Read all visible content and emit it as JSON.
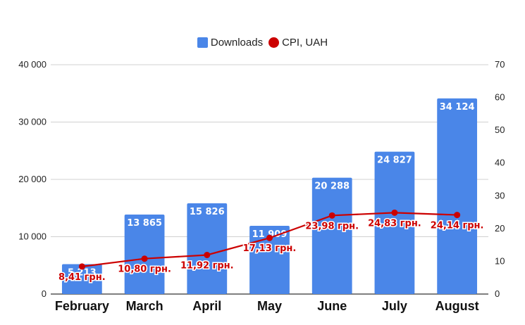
{
  "chart_data": {
    "type": "bar",
    "categories": [
      "February",
      "March",
      "April",
      "May",
      "June",
      "July",
      "August"
    ],
    "series": [
      {
        "name": "Downloads",
        "type": "bar",
        "axis": "left",
        "color": "#4a86e8",
        "values": [
          5213,
          13865,
          15826,
          11909,
          20288,
          24827,
          34124
        ],
        "labels": [
          "5 213",
          "13 865",
          "15 826",
          "11 909",
          "20 288",
          "24 827",
          "34 124"
        ]
      },
      {
        "name": "CPI, UAH",
        "type": "line",
        "axis": "right",
        "color": "#cc0000",
        "values": [
          8.41,
          10.8,
          11.92,
          17.13,
          23.98,
          24.83,
          24.14
        ],
        "labels": [
          "8,41 грн.",
          "10,80 грн.",
          "11,92 грн.",
          "17,13 грн.",
          "23,98 грн.",
          "24,83 грн.",
          "24,14 грн."
        ]
      }
    ],
    "y_left": {
      "range": [
        0,
        40000
      ],
      "ticks": [
        0,
        10000,
        20000,
        30000,
        40000
      ],
      "tick_labels": [
        "0",
        "10 000",
        "20 000",
        "30 000",
        "40 000"
      ]
    },
    "y_right": {
      "range": [
        0,
        70
      ],
      "ticks": [
        0,
        10,
        20,
        30,
        40,
        50,
        60,
        70
      ],
      "tick_labels": [
        "0",
        "10",
        "20",
        "30",
        "40",
        "50",
        "60",
        "70"
      ]
    },
    "legend_position": "top-center",
    "grid": true
  }
}
